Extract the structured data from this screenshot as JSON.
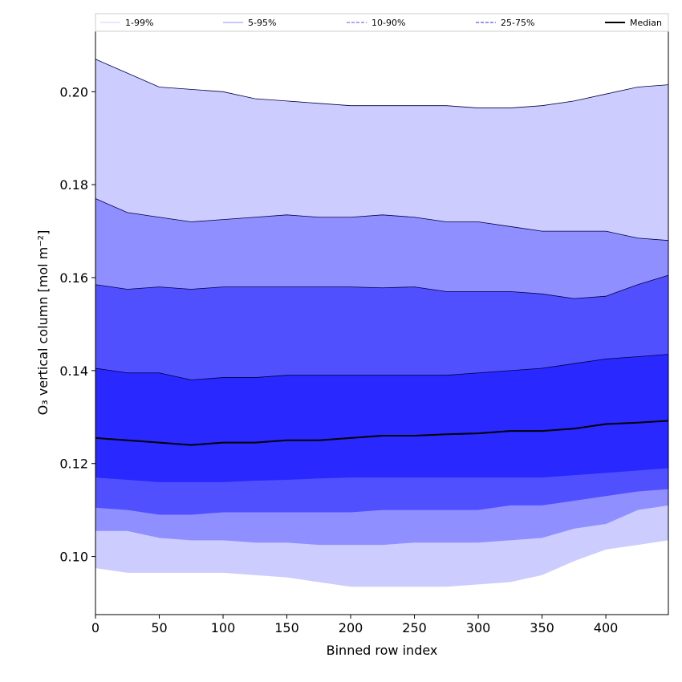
{
  "chart_data": {
    "type": "area",
    "xlabel": "Binned row index",
    "ylabel": "O₃ vertical column [mol m⁻²]",
    "xlim": [
      0,
      449
    ],
    "ylim": [
      0.0875,
      0.213
    ],
    "xticks": [
      0,
      50,
      100,
      150,
      200,
      250,
      300,
      350,
      400
    ],
    "yticks": [
      0.1,
      0.12,
      0.14,
      0.16,
      0.18,
      0.2
    ],
    "ytick_labels": [
      "0.10",
      "0.12",
      "0.14",
      "0.16",
      "0.18",
      "0.20"
    ],
    "legend_position": "top",
    "x": [
      0,
      25,
      50,
      75,
      100,
      125,
      150,
      175,
      200,
      225,
      250,
      275,
      300,
      325,
      350,
      375,
      400,
      425,
      449
    ],
    "bands": [
      {
        "name": "1-99%",
        "color": "#ccccff",
        "line_style": "solid",
        "upper": [
          0.207,
          0.204,
          0.201,
          0.2005,
          0.2,
          0.1985,
          0.198,
          0.1975,
          0.197,
          0.197,
          0.197,
          0.197,
          0.1965,
          0.1965,
          0.197,
          0.198,
          0.1995,
          0.201,
          0.2015
        ],
        "lower": [
          0.0975,
          0.0965,
          0.0965,
          0.0965,
          0.0965,
          0.096,
          0.0955,
          0.0945,
          0.0935,
          0.0935,
          0.0935,
          0.0935,
          0.094,
          0.0945,
          0.096,
          0.099,
          0.1015,
          0.1025,
          0.1035
        ]
      },
      {
        "name": "5-95%",
        "color": "#8f8fff",
        "line_style": "solid",
        "upper": [
          0.177,
          0.174,
          0.173,
          0.172,
          0.1725,
          0.173,
          0.1735,
          0.173,
          0.173,
          0.1735,
          0.173,
          0.172,
          0.172,
          0.171,
          0.17,
          0.17,
          0.17,
          0.1685,
          0.168
        ],
        "lower": [
          0.1055,
          0.1055,
          0.104,
          0.1035,
          0.1035,
          0.103,
          0.103,
          0.1025,
          0.1025,
          0.1025,
          0.103,
          0.103,
          0.103,
          0.1035,
          0.104,
          0.106,
          0.107,
          0.11,
          0.111
        ]
      },
      {
        "name": "10-90%",
        "color": "#5050ff",
        "line_style": "dashed",
        "upper": [
          0.1585,
          0.1575,
          0.158,
          0.1575,
          0.158,
          0.158,
          0.158,
          0.158,
          0.158,
          0.1578,
          0.158,
          0.157,
          0.157,
          0.157,
          0.1565,
          0.1555,
          0.156,
          0.1585,
          0.1605
        ],
        "lower": [
          0.1105,
          0.11,
          0.109,
          0.109,
          0.1095,
          0.1095,
          0.1095,
          0.1095,
          0.1095,
          0.11,
          0.11,
          0.11,
          0.11,
          0.111,
          0.111,
          0.112,
          0.113,
          0.114,
          0.1145
        ]
      },
      {
        "name": "25-75%",
        "color": "#2828ff",
        "line_style": "dashed",
        "upper": [
          0.1405,
          0.1395,
          0.1395,
          0.138,
          0.1385,
          0.1385,
          0.139,
          0.139,
          0.139,
          0.139,
          0.139,
          0.139,
          0.1395,
          0.14,
          0.1405,
          0.1415,
          0.1425,
          0.143,
          0.1435
        ],
        "lower": [
          0.117,
          0.1165,
          0.116,
          0.116,
          0.116,
          0.1163,
          0.1165,
          0.1168,
          0.117,
          0.117,
          0.117,
          0.117,
          0.117,
          0.117,
          0.117,
          0.1175,
          0.118,
          0.1185,
          0.119
        ]
      }
    ],
    "median": {
      "name": "Median",
      "color": "#000000",
      "values": [
        0.1255,
        0.125,
        0.1245,
        0.124,
        0.1245,
        0.1245,
        0.125,
        0.125,
        0.1255,
        0.126,
        0.126,
        0.1263,
        0.1265,
        0.127,
        0.127,
        0.1275,
        0.1285,
        0.1288,
        0.1292
      ]
    }
  }
}
